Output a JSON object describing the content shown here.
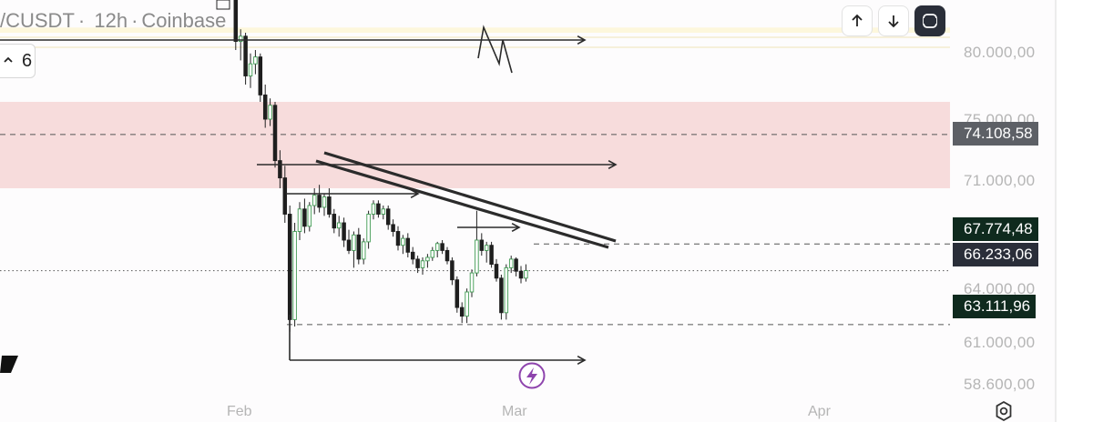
{
  "header": {
    "symbol": "/CUSDT",
    "dot": "·",
    "interval": "12h",
    "exchange": "Coinbase"
  },
  "interval_selector": {
    "value": "6"
  },
  "toolbar": {
    "up_icon": "arrow-up-icon",
    "down_icon": "arrow-down-icon",
    "fullscreen_icon": "fullscreen-icon"
  },
  "price_axis": {
    "ticks": [
      "80.000,00",
      "75.000,00",
      "71.000,00",
      "64.000,00",
      "61.000,00",
      "58.600,00"
    ],
    "tags": [
      {
        "label": "74.108,58",
        "color": "#5d6066"
      },
      {
        "label": "67.774,48",
        "color": "#0f2a1e"
      },
      {
        "label": "66.233,06",
        "color": "#2a2e39"
      },
      {
        "label": "63.111,96",
        "color": "#0f2a1e"
      }
    ]
  },
  "time_axis": {
    "ticks": [
      "Feb",
      "Mar",
      "Apr"
    ]
  },
  "settings_icon": "gear-icon",
  "replay_icon": "lightning-icon",
  "chart_data": {
    "type": "candlestick",
    "zones": [
      {
        "name": "resistance-band",
        "from": 80000,
        "to": 80300,
        "color": "#fdf7dc"
      },
      {
        "name": "supply-zone",
        "from": 71000,
        "to": 76000,
        "color": "#f7dcdc"
      }
    ],
    "levels": [
      74108.58,
      67774.48,
      66233.06,
      63111.96
    ],
    "candles": [
      [
        84200,
        84600,
        83600,
        84000
      ],
      [
        84000,
        84300,
        83000,
        83200
      ],
      [
        83200,
        83400,
        79000,
        79500
      ],
      [
        79500,
        80200,
        78400,
        79800
      ],
      [
        79800,
        80000,
        77000,
        77500
      ],
      [
        77500,
        78800,
        76800,
        78200
      ],
      [
        78200,
        79000,
        77600,
        78600
      ],
      [
        78600,
        78800,
        76000,
        76400
      ],
      [
        76400,
        77000,
        74500,
        75000
      ],
      [
        75000,
        76200,
        74600,
        75800
      ],
      [
        75800,
        76000,
        72200,
        72600
      ],
      [
        72600,
        73200,
        71000,
        71600
      ],
      [
        71600,
        72300,
        69000,
        69500
      ],
      [
        69500,
        70000,
        62700,
        63400
      ],
      [
        63400,
        69000,
        63000,
        68500
      ],
      [
        68500,
        70200,
        68000,
        69800
      ],
      [
        69800,
        70400,
        68400,
        68800
      ],
      [
        68800,
        70200,
        68500,
        70000
      ],
      [
        70000,
        71000,
        69500,
        70600
      ],
      [
        70600,
        71200,
        69600,
        69900
      ],
      [
        69900,
        70700,
        69400,
        70500
      ],
      [
        70500,
        71000,
        69300,
        69500
      ],
      [
        69500,
        69800,
        68400,
        68700
      ],
      [
        68700,
        69400,
        68200,
        69000
      ],
      [
        69000,
        69300,
        67600,
        68000
      ],
      [
        68000,
        68600,
        67200,
        67400
      ],
      [
        67400,
        68500,
        66400,
        68300
      ],
      [
        68300,
        68700,
        66600,
        66900
      ],
      [
        66900,
        68100,
        66600,
        67900
      ],
      [
        67900,
        69700,
        67500,
        69500
      ],
      [
        69500,
        70300,
        69200,
        70100
      ],
      [
        70100,
        70300,
        69300,
        69500
      ],
      [
        69500,
        70000,
        69200,
        69800
      ],
      [
        69800,
        70000,
        68600,
        68900
      ],
      [
        68900,
        69200,
        68200,
        68500
      ],
      [
        68500,
        68800,
        67400,
        67700
      ],
      [
        67700,
        68300,
        67200,
        68100
      ],
      [
        68100,
        68400,
        67000,
        67300
      ],
      [
        67300,
        67600,
        66600,
        66900
      ],
      [
        66900,
        67100,
        66100,
        66400
      ],
      [
        66400,
        67000,
        66000,
        66800
      ],
      [
        66800,
        67200,
        66400,
        67000
      ],
      [
        67000,
        67600,
        66800,
        67400
      ],
      [
        67400,
        67900,
        67000,
        67800
      ],
      [
        67800,
        68000,
        67200,
        67400
      ],
      [
        67400,
        67600,
        66600,
        66800
      ],
      [
        66800,
        67000,
        65400,
        65700
      ],
      [
        65700,
        65900,
        63800,
        64100
      ],
      [
        64100,
        64400,
        63200,
        63600
      ],
      [
        63600,
        65200,
        63200,
        65000
      ],
      [
        65000,
        66300,
        64700,
        66100
      ],
      [
        66100,
        69700,
        65900,
        68000
      ],
      [
        68000,
        68400,
        67100,
        67400
      ],
      [
        67400,
        67900,
        66700,
        67700
      ],
      [
        67700,
        67900,
        66400,
        66600
      ],
      [
        66600,
        66900,
        65600,
        65800
      ],
      [
        65800,
        66000,
        63400,
        63800
      ],
      [
        63800,
        66600,
        63400,
        66400
      ],
      [
        66400,
        67100,
        66100,
        66900
      ],
      [
        66900,
        67000,
        65900,
        66200
      ],
      [
        66200,
        66500,
        65500,
        65800
      ],
      [
        65800,
        66600,
        65600,
        66233
      ]
    ]
  }
}
